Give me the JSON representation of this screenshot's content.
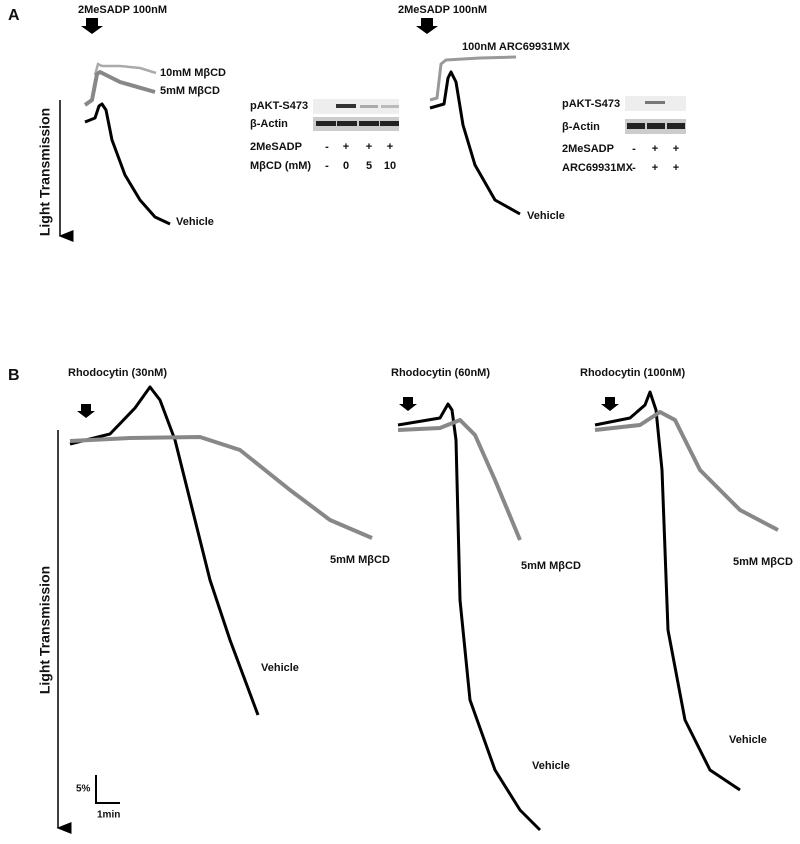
{
  "panel_a": {
    "label": "A",
    "left": {
      "stimulus": "2MeSADP 100nM",
      "traces": [
        "10mM MβCD",
        "5mM MβCD",
        "Vehicle"
      ],
      "y_axis": "Light Transmission",
      "blot": {
        "bands": [
          "pAKT-S473",
          "β-Actin"
        ],
        "rows": [
          {
            "label": "2MeSADP",
            "cells": [
              "-",
              "+",
              "+",
              "+"
            ]
          },
          {
            "label": "MβCD (mM)",
            "cells": [
              "-",
              0,
              5,
              10
            ]
          }
        ]
      }
    },
    "right": {
      "stimulus": "2MeSADP 100nM",
      "traces": [
        "100nM ARC69931MX",
        "Vehicle"
      ],
      "blot": {
        "bands": [
          "pAKT-S473",
          "β-Actin"
        ],
        "rows": [
          {
            "label": "2MeSADP",
            "cells": [
              "-",
              "+",
              "+"
            ]
          },
          {
            "label": "ARC69931MX",
            "cells": [
              "-",
              "+",
              "+"
            ]
          }
        ]
      }
    }
  },
  "panel_b": {
    "label": "B",
    "y_axis": "Light Transmission",
    "scale": {
      "y": "5%",
      "x": "1min"
    },
    "groups": [
      {
        "stimulus": "Rhodocytin (30nM)",
        "treated": "5mM MβCD",
        "control": "Vehicle"
      },
      {
        "stimulus": "Rhodocytin (60nM)",
        "treated": "5mM MβCD",
        "control": "Vehicle"
      },
      {
        "stimulus": "Rhodocytin (100nM)",
        "treated": "5mM MβCD",
        "control": "Vehicle"
      }
    ]
  }
}
